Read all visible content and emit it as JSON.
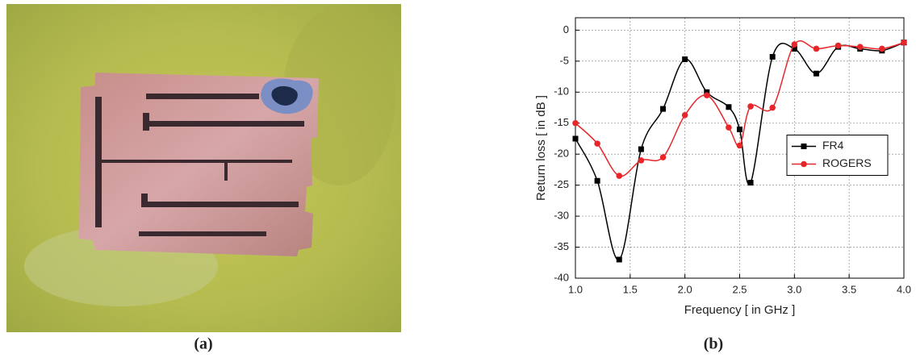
{
  "chart_data": {
    "type": "line",
    "xlabel": "Frequency [ in GHz ]",
    "ylabel": "Return loss [ in dB ]",
    "xlim": [
      1,
      4
    ],
    "ylim": [
      -40,
      2
    ],
    "xticks": [
      {
        "value": 1,
        "label": "1.0"
      },
      1.5,
      {
        "value": 2,
        "label": "2.0"
      },
      2.5,
      {
        "value": 3,
        "label": "3.0"
      },
      3.5,
      {
        "value": 4,
        "label": "4.0"
      }
    ],
    "yticks": [
      0,
      -5,
      -10,
      -15,
      -20,
      -25,
      -30,
      -35,
      -40
    ],
    "grid": true,
    "legend": "right",
    "series": [
      {
        "name": "FR4",
        "color": "#000000",
        "marker": "square",
        "x": [
          1.0,
          1.2,
          1.4,
          1.6,
          1.8,
          2.0,
          2.2,
          2.4,
          2.5,
          2.6,
          2.8,
          3.0,
          3.2,
          3.4,
          3.6,
          3.8,
          4.0
        ],
        "values": [
          -17.5,
          -24.3,
          -37,
          -19.2,
          -12.7,
          -4.7,
          -10,
          -12.4,
          -16,
          -24.6,
          -4.3,
          -3,
          -7,
          -2.7,
          -3,
          -3.3,
          -2
        ]
      },
      {
        "name": "ROGERS",
        "color": "#e8262a",
        "marker": "circle",
        "x": [
          1.0,
          1.2,
          1.4,
          1.6,
          1.8,
          2.0,
          2.2,
          2.4,
          2.5,
          2.6,
          2.8,
          3.0,
          3.2,
          3.4,
          3.6,
          3.8,
          4.0
        ],
        "values": [
          -15,
          -18.3,
          -23.5,
          -21,
          -20.5,
          -13.7,
          -10.5,
          -15.7,
          -18.6,
          -12.3,
          -12.5,
          -2.3,
          -3,
          -2.5,
          -2.7,
          -3,
          -2
        ]
      }
    ]
  },
  "captions": [
    "(a)",
    "(b)"
  ]
}
